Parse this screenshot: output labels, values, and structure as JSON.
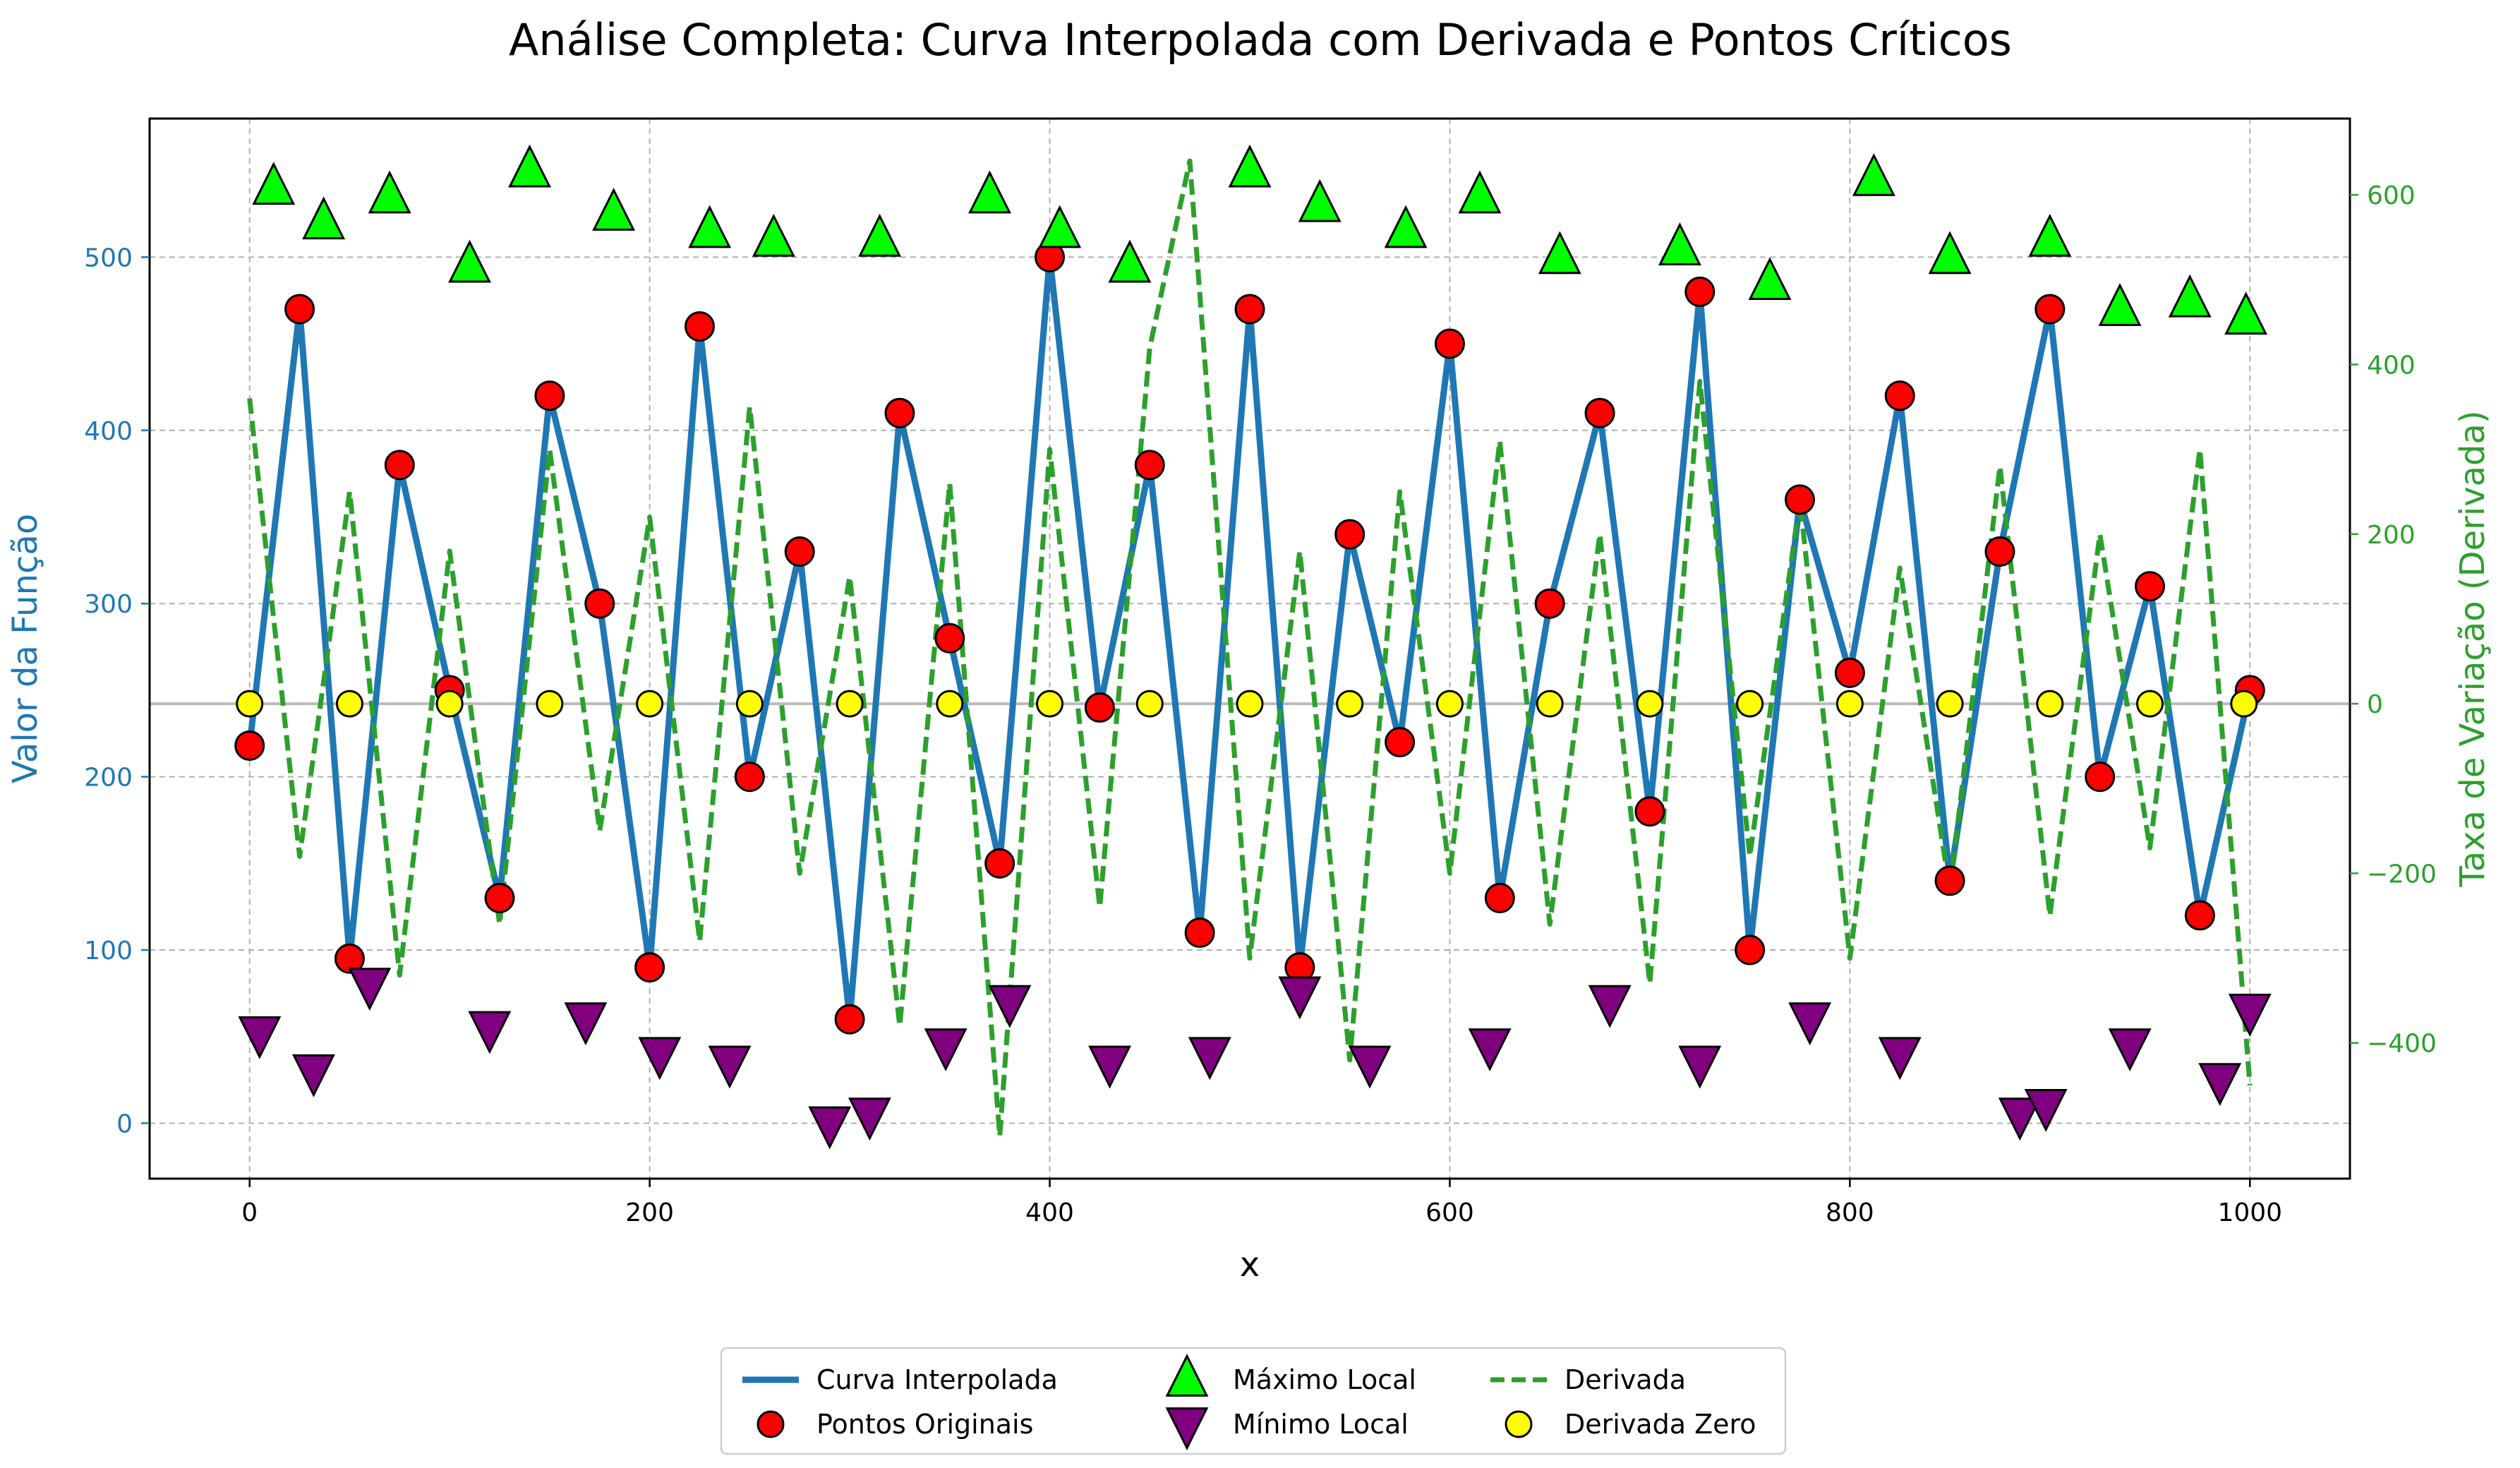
{
  "chart_data": {
    "type": "line",
    "title": "Análise Completa: Curva Interpolada com Derivada e Pontos Críticos",
    "xlabel": "x",
    "ylabel_left": "Valor da Função",
    "ylabel_right": "Taxa de Variação (Derivada)",
    "xlim": [
      -50,
      1050
    ],
    "ylim_left": [
      -32,
      580
    ],
    "ylim_right": [
      -560,
      690
    ],
    "xticks": [
      "0",
      "200",
      "400",
      "600",
      "800",
      "1000"
    ],
    "yticks_left": [
      "0",
      "100",
      "200",
      "300",
      "400",
      "500"
    ],
    "yticks_right": [
      "−400",
      "−200",
      "0",
      "200",
      "400",
      "600"
    ],
    "grid": true,
    "legend_position": "below",
    "x_range_of_data": [
      0,
      1000
    ],
    "series": [
      {
        "name": "Curva Interpolada",
        "color": "#1f77b4",
        "axis": "left",
        "style": "solid",
        "x": [
          0,
          25,
          50,
          75,
          100,
          125,
          150,
          175,
          200,
          225,
          250,
          275,
          300,
          325,
          350,
          375,
          400,
          425,
          450,
          475,
          500,
          525,
          550,
          575,
          600,
          625,
          650,
          675,
          700,
          725,
          750,
          775,
          800,
          825,
          850,
          875,
          900,
          925,
          950,
          975,
          1000
        ],
        "values": [
          218,
          470,
          95,
          380,
          250,
          130,
          420,
          300,
          90,
          460,
          200,
          330,
          60,
          410,
          280,
          150,
          500,
          240,
          380,
          110,
          470,
          90,
          340,
          220,
          450,
          130,
          300,
          410,
          180,
          480,
          100,
          360,
          260,
          420,
          140,
          330,
          470,
          200,
          310,
          120,
          250
        ]
      },
      {
        "name": "Pontos Originais",
        "color": "#ff0000",
        "axis": "left",
        "style": "circle-marker",
        "x": [
          0,
          25,
          50,
          75,
          100,
          125,
          150,
          175,
          200,
          225,
          250,
          275,
          300,
          325,
          350,
          375,
          400,
          425,
          450,
          475,
          500,
          525,
          550,
          575,
          600,
          625,
          650,
          675,
          700,
          725,
          750,
          775,
          800,
          825,
          850,
          875,
          900,
          925,
          950,
          975,
          1000
        ],
        "values": [
          218,
          470,
          95,
          380,
          250,
          130,
          420,
          300,
          90,
          460,
          200,
          330,
          60,
          410,
          280,
          150,
          500,
          240,
          380,
          110,
          470,
          90,
          340,
          220,
          450,
          130,
          300,
          410,
          180,
          480,
          100,
          360,
          260,
          420,
          140,
          330,
          470,
          200,
          310,
          120,
          250
        ]
      },
      {
        "name": "Máximo Local",
        "color": "#00ff00",
        "axis": "left",
        "style": "triangle-up-marker",
        "x": [
          12,
          37,
          70,
          110,
          140,
          182,
          230,
          262,
          315,
          370,
          405,
          440,
          500,
          535,
          578,
          615,
          655,
          715,
          760,
          812,
          850,
          900,
          935,
          970,
          998
        ],
        "values": [
          540,
          520,
          535,
          495,
          550,
          525,
          515,
          510,
          510,
          535,
          515,
          495,
          550,
          530,
          515,
          535,
          500,
          505,
          485,
          545,
          500,
          510,
          470,
          475,
          465
        ]
      },
      {
        "name": "Mínimo Local",
        "color": "#800080",
        "axis": "left",
        "style": "triangle-down-marker",
        "x": [
          5,
          32,
          60,
          120,
          168,
          205,
          240,
          290,
          310,
          348,
          380,
          430,
          480,
          525,
          560,
          620,
          680,
          725,
          780,
          825,
          885,
          898,
          940,
          985,
          1000
        ],
        "values": [
          52,
          30,
          80,
          55,
          60,
          40,
          35,
          0,
          5,
          45,
          70,
          35,
          40,
          75,
          35,
          45,
          70,
          35,
          60,
          40,
          5,
          10,
          45,
          25,
          65
        ]
      },
      {
        "name": "Derivada",
        "color": "#2ca02c",
        "axis": "right",
        "style": "dashed",
        "x": [
          0,
          25,
          50,
          75,
          100,
          125,
          150,
          175,
          200,
          225,
          250,
          275,
          300,
          325,
          350,
          375,
          400,
          425,
          450,
          470,
          500,
          525,
          550,
          575,
          600,
          625,
          650,
          675,
          700,
          725,
          750,
          775,
          800,
          825,
          850,
          875,
          900,
          925,
          950,
          975,
          1000
        ],
        "values": [
          360,
          -180,
          250,
          -320,
          180,
          -260,
          300,
          -150,
          220,
          -280,
          350,
          -200,
          150,
          -380,
          260,
          -510,
          300,
          -240,
          420,
          640,
          -300,
          180,
          -420,
          250,
          -200,
          310,
          -260,
          200,
          -330,
          380,
          -180,
          240,
          -300,
          160,
          -220,
          280,
          -250,
          200,
          -170,
          300,
          -450
        ]
      },
      {
        "name": "Derivada Zero",
        "color": "#ffff00",
        "axis": "right",
        "style": "circle-marker",
        "x": [
          0,
          50,
          100,
          150,
          200,
          250,
          300,
          350,
          400,
          450,
          500,
          550,
          600,
          650,
          700,
          750,
          800,
          850,
          900,
          950,
          997
        ],
        "values": [
          0,
          0,
          0,
          0,
          0,
          0,
          0,
          0,
          0,
          0,
          0,
          0,
          0,
          0,
          0,
          0,
          0,
          0,
          0,
          0,
          0
        ]
      }
    ]
  }
}
